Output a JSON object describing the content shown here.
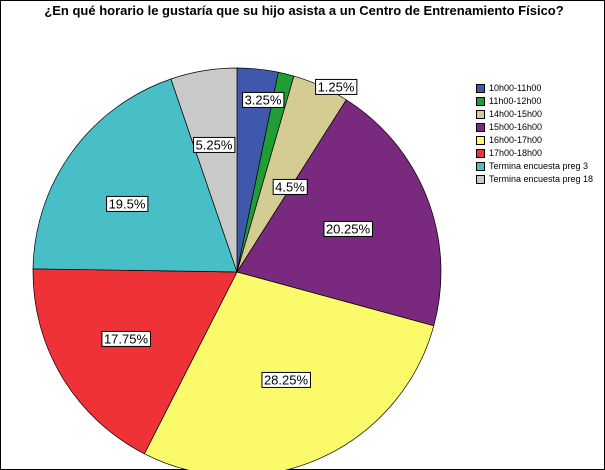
{
  "chart_data": {
    "type": "pie",
    "title": "¿En qué horario le gustaría que su hijo asista a un Centro de Entrenamiento Físico?",
    "categories": [
      "10h00-11h00",
      "11h00-12h00",
      "14h00-15h00",
      "15h00-16h00",
      "16h00-17h00",
      "17h00-18h00",
      "Termina encuesta preg 3",
      "Termina encuesta preg 18"
    ],
    "values": [
      3.25,
      1.25,
      4.5,
      20.25,
      28.25,
      17.75,
      19.5,
      5.25
    ],
    "value_labels": [
      "3.25%",
      "1.25%",
      "4.5%",
      "20.25%",
      "28.25%",
      "17.75%",
      "19.5%",
      "5.25%"
    ],
    "colors": [
      "#3e58ac",
      "#1f9e36",
      "#d5cc94",
      "#7a2a7e",
      "#fafa6a",
      "#ef3138",
      "#48bfc6",
      "#c9c9c9"
    ],
    "legend": "right"
  }
}
